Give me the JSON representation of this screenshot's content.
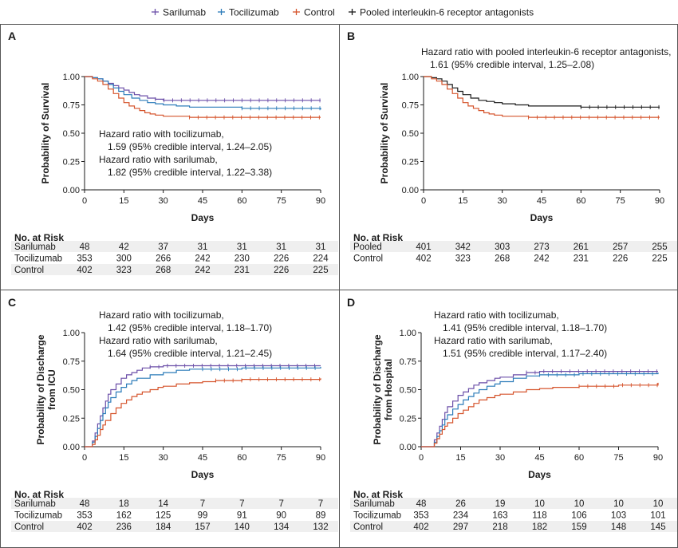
{
  "legend": [
    {
      "name": "Sarilumab",
      "color": "#6b4fa8"
    },
    {
      "name": "Tocilizumab",
      "color": "#2b7bb9"
    },
    {
      "name": "Control",
      "color": "#d5542c"
    },
    {
      "name": "Pooled interleukin-6 receptor antagonists",
      "color": "#1a1a1a"
    }
  ],
  "colors": {
    "sarilumab": "#6b4fa8",
    "tocilizumab": "#2b7bb9",
    "control": "#d5542c",
    "pooled": "#1a1a1a",
    "stripe": "#efefef"
  },
  "chart_data": [
    {
      "panel": "A",
      "type": "line",
      "subtype": "kaplan-meier",
      "ylabel": "Probability of Survival",
      "xlabel": "Days",
      "xlim": [
        0,
        90
      ],
      "ylim": [
        0,
        1
      ],
      "xticks": [
        0,
        15,
        30,
        45,
        60,
        75,
        90
      ],
      "yticks": [
        "0.00",
        "0.25",
        "0.50",
        "0.75",
        "1.00"
      ],
      "annotation": [
        "Hazard ratio with tocilizumab,",
        "1.59 (95% credible interval, 1.24–2.05)",
        "Hazard ratio with sarilumab,",
        "1.82 (95% credible interval, 1.22–3.38)"
      ],
      "series": [
        {
          "name": "Sarilumab",
          "key": "sarilumab",
          "x": [
            0,
            3,
            5,
            7,
            9,
            11,
            13,
            15,
            17,
            19,
            21,
            24,
            27,
            30,
            90
          ],
          "y": [
            1,
            0.99,
            0.98,
            0.96,
            0.94,
            0.92,
            0.9,
            0.88,
            0.86,
            0.84,
            0.83,
            0.81,
            0.8,
            0.79,
            0.79
          ]
        },
        {
          "name": "Tocilizumab",
          "key": "tocilizumab",
          "x": [
            0,
            3,
            5,
            7,
            9,
            11,
            13,
            15,
            18,
            21,
            24,
            27,
            30,
            35,
            40,
            45,
            60,
            75,
            90
          ],
          "y": [
            1,
            0.99,
            0.98,
            0.96,
            0.93,
            0.9,
            0.87,
            0.84,
            0.81,
            0.79,
            0.77,
            0.76,
            0.75,
            0.74,
            0.73,
            0.73,
            0.72,
            0.72,
            0.71
          ]
        },
        {
          "name": "Control",
          "key": "control",
          "x": [
            0,
            3,
            5,
            7,
            9,
            11,
            13,
            15,
            17,
            19,
            21,
            23,
            25,
            27,
            30,
            35,
            40,
            45,
            90
          ],
          "y": [
            1,
            0.98,
            0.96,
            0.93,
            0.89,
            0.85,
            0.81,
            0.77,
            0.74,
            0.72,
            0.7,
            0.68,
            0.67,
            0.66,
            0.65,
            0.65,
            0.64,
            0.64,
            0.64
          ]
        }
      ],
      "risk_table": {
        "title": "No. at Risk",
        "rows": [
          {
            "label": "Sarilumab",
            "values": [
              "48",
              "42",
              "37",
              "31",
              "31",
              "31",
              "31"
            ]
          },
          {
            "label": "Tocilizumab",
            "values": [
              "353",
              "300",
              "266",
              "242",
              "230",
              "226",
              "224"
            ]
          },
          {
            "label": "Control",
            "values": [
              "402",
              "323",
              "268",
              "242",
              "231",
              "226",
              "225"
            ]
          }
        ]
      }
    },
    {
      "panel": "B",
      "type": "line",
      "subtype": "kaplan-meier",
      "ylabel": "Probability of Survival",
      "xlabel": "Days",
      "xlim": [
        0,
        90
      ],
      "ylim": [
        0,
        1
      ],
      "xticks": [
        0,
        15,
        30,
        45,
        60,
        75,
        90
      ],
      "yticks": [
        "0.00",
        "0.25",
        "0.50",
        "0.75",
        "1.00"
      ],
      "annotation": [
        "Hazard ratio with pooled interleukin-6 receptor antagonists,",
        "1.61 (95% credible interval, 1.25–2.08)"
      ],
      "series": [
        {
          "name": "Pooled",
          "key": "pooled",
          "x": [
            0,
            3,
            5,
            7,
            9,
            11,
            13,
            15,
            18,
            21,
            24,
            27,
            30,
            35,
            40,
            45,
            60,
            75,
            90
          ],
          "y": [
            1,
            0.99,
            0.98,
            0.96,
            0.93,
            0.9,
            0.87,
            0.84,
            0.81,
            0.79,
            0.78,
            0.77,
            0.76,
            0.75,
            0.74,
            0.74,
            0.73,
            0.73,
            0.73
          ]
        },
        {
          "name": "Control",
          "key": "control",
          "x": [
            0,
            3,
            5,
            7,
            9,
            11,
            13,
            15,
            17,
            19,
            21,
            23,
            25,
            27,
            30,
            35,
            40,
            45,
            90
          ],
          "y": [
            1,
            0.98,
            0.96,
            0.93,
            0.89,
            0.85,
            0.81,
            0.77,
            0.74,
            0.72,
            0.7,
            0.68,
            0.67,
            0.66,
            0.65,
            0.65,
            0.64,
            0.64,
            0.64
          ]
        }
      ],
      "risk_table": {
        "title": "No. at Risk",
        "rows": [
          {
            "label": "Pooled",
            "values": [
              "401",
              "342",
              "303",
              "273",
              "261",
              "257",
              "255"
            ]
          },
          {
            "label": "Control",
            "values": [
              "402",
              "323",
              "268",
              "242",
              "231",
              "226",
              "225"
            ]
          }
        ]
      }
    },
    {
      "panel": "C",
      "type": "line",
      "subtype": "cumulative-incidence",
      "ylabel": [
        "Probability of Discharge",
        "from ICU"
      ],
      "xlabel": "Days",
      "xlim": [
        0,
        90
      ],
      "ylim": [
        0,
        1
      ],
      "xticks": [
        0,
        15,
        30,
        45,
        60,
        75,
        90
      ],
      "yticks": [
        "0.00",
        "0.25",
        "0.50",
        "0.75",
        "1.00"
      ],
      "annotation": [
        "Hazard ratio with tocilizumab,",
        "1.42 (95% credible interval, 1.18–1.70)",
        "Hazard ratio with sarilumab,",
        "1.64 (95% credible interval, 1.21–2.45)"
      ],
      "series": [
        {
          "name": "Sarilumab",
          "key": "sarilumab",
          "x": [
            0,
            2,
            3,
            4,
            5,
            6,
            7,
            8,
            9,
            10,
            12,
            14,
            16,
            18,
            20,
            22,
            25,
            30,
            90
          ],
          "y": [
            0,
            0,
            0.05,
            0.12,
            0.2,
            0.27,
            0.34,
            0.4,
            0.46,
            0.5,
            0.55,
            0.6,
            0.63,
            0.65,
            0.67,
            0.69,
            0.7,
            0.71,
            0.71
          ]
        },
        {
          "name": "Tocilizumab",
          "key": "tocilizumab",
          "x": [
            0,
            2,
            3,
            4,
            5,
            6,
            7,
            8,
            9,
            10,
            12,
            14,
            16,
            18,
            20,
            25,
            30,
            35,
            40,
            45,
            60,
            90
          ],
          "y": [
            0,
            0,
            0.04,
            0.09,
            0.16,
            0.23,
            0.29,
            0.34,
            0.39,
            0.43,
            0.48,
            0.52,
            0.55,
            0.58,
            0.6,
            0.63,
            0.65,
            0.67,
            0.68,
            0.68,
            0.69,
            0.7
          ]
        },
        {
          "name": "Control",
          "key": "control",
          "x": [
            0,
            2,
            3,
            4,
            5,
            6,
            7,
            8,
            10,
            12,
            14,
            16,
            18,
            20,
            22,
            25,
            28,
            30,
            35,
            40,
            45,
            50,
            60,
            90
          ],
          "y": [
            0,
            0,
            0.02,
            0.06,
            0.1,
            0.15,
            0.19,
            0.23,
            0.29,
            0.34,
            0.38,
            0.41,
            0.44,
            0.46,
            0.48,
            0.5,
            0.52,
            0.53,
            0.55,
            0.56,
            0.57,
            0.58,
            0.59,
            0.6
          ]
        }
      ],
      "risk_table": {
        "title": "No. at Risk",
        "rows": [
          {
            "label": "Sarilumab",
            "values": [
              "48",
              "18",
              "14",
              "7",
              "7",
              "7",
              "7"
            ]
          },
          {
            "label": "Tocilizumab",
            "values": [
              "353",
              "162",
              "125",
              "99",
              "91",
              "90",
              "89"
            ]
          },
          {
            "label": "Control",
            "values": [
              "402",
              "236",
              "184",
              "157",
              "140",
              "134",
              "132"
            ]
          }
        ]
      }
    },
    {
      "panel": "D",
      "type": "line",
      "subtype": "cumulative-incidence",
      "ylabel": [
        "Probability of Discharge",
        "from Hospital"
      ],
      "xlabel": "Days",
      "xlim": [
        0,
        90
      ],
      "ylim": [
        0,
        1
      ],
      "xticks": [
        0,
        15,
        30,
        45,
        60,
        75,
        90
      ],
      "yticks": [
        "0.00",
        "0.25",
        "0.50",
        "0.75",
        "1.00"
      ],
      "annotation": [
        "Hazard ratio with tocilizumab,",
        "1.41 (95% credible interval, 1.18–1.70)",
        "Hazard ratio with sarilumab,",
        "1.51 (95% credible interval, 1.17–2.40)"
      ],
      "series": [
        {
          "name": "Sarilumab",
          "key": "sarilumab",
          "x": [
            0,
            4,
            5,
            6,
            7,
            8,
            9,
            10,
            12,
            14,
            16,
            18,
            20,
            22,
            25,
            28,
            30,
            35,
            40,
            45,
            90
          ],
          "y": [
            0,
            0,
            0.06,
            0.12,
            0.18,
            0.24,
            0.3,
            0.35,
            0.4,
            0.45,
            0.48,
            0.51,
            0.54,
            0.56,
            0.58,
            0.6,
            0.61,
            0.63,
            0.65,
            0.66,
            0.66
          ]
        },
        {
          "name": "Tocilizumab",
          "key": "tocilizumab",
          "x": [
            0,
            4,
            5,
            6,
            7,
            8,
            9,
            10,
            12,
            14,
            16,
            18,
            20,
            22,
            25,
            28,
            30,
            35,
            40,
            45,
            60,
            90
          ],
          "y": [
            0,
            0,
            0.04,
            0.09,
            0.14,
            0.19,
            0.24,
            0.28,
            0.33,
            0.37,
            0.41,
            0.44,
            0.47,
            0.5,
            0.53,
            0.55,
            0.57,
            0.6,
            0.62,
            0.63,
            0.64,
            0.65
          ]
        },
        {
          "name": "Control",
          "key": "control",
          "x": [
            0,
            4,
            5,
            6,
            7,
            8,
            9,
            10,
            12,
            14,
            16,
            18,
            20,
            22,
            25,
            28,
            30,
            35,
            40,
            45,
            50,
            60,
            75,
            90
          ],
          "y": [
            0,
            0,
            0.03,
            0.07,
            0.11,
            0.15,
            0.18,
            0.21,
            0.25,
            0.29,
            0.32,
            0.35,
            0.38,
            0.41,
            0.43,
            0.45,
            0.46,
            0.48,
            0.5,
            0.51,
            0.52,
            0.53,
            0.54,
            0.56
          ]
        }
      ],
      "risk_table": {
        "title": "No. at Risk",
        "rows": [
          {
            "label": "Sarilumab",
            "values": [
              "48",
              "26",
              "19",
              "10",
              "10",
              "10",
              "10"
            ]
          },
          {
            "label": "Tocilizumab",
            "values": [
              "353",
              "234",
              "163",
              "118",
              "106",
              "103",
              "101"
            ]
          },
          {
            "label": "Control",
            "values": [
              "402",
              "297",
              "218",
              "182",
              "159",
              "148",
              "145"
            ]
          }
        ]
      }
    }
  ]
}
